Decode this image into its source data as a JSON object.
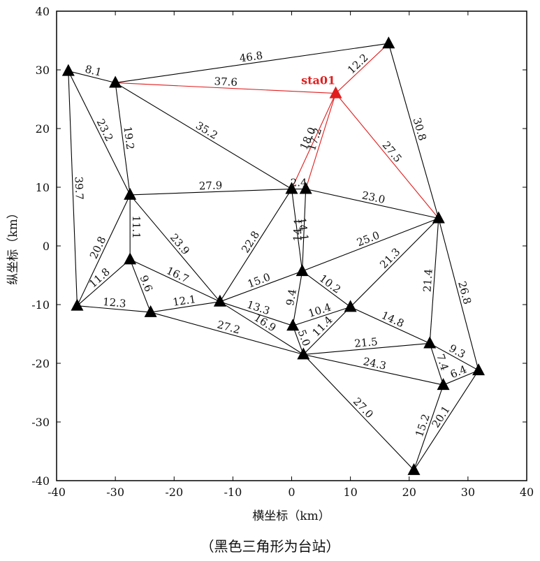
{
  "axes": {
    "x_label": "横坐标（km）",
    "y_label": "纵坐标（km）",
    "x_range": [
      -40,
      40
    ],
    "y_range": [
      -40,
      40
    ],
    "x_ticks": [
      "-40",
      "-30",
      "-20",
      "-10",
      "0",
      "10",
      "20",
      "30",
      "40"
    ],
    "y_ticks": [
      "40",
      "30",
      "20",
      "10",
      "0",
      "-10",
      "-20",
      "-30",
      "-40"
    ]
  },
  "caption": "（黑色三角形为台站）",
  "highlight_station": {
    "label": "sta01",
    "color": "#e01e1e"
  },
  "stations": [
    {
      "id": "A",
      "x": -38.0,
      "y": 29.8
    },
    {
      "id": "B",
      "x": -30.0,
      "y": 27.8
    },
    {
      "id": "C",
      "x": 16.5,
      "y": 34.5
    },
    {
      "id": "S",
      "x": 7.5,
      "y": 26.0,
      "highlight": true
    },
    {
      "id": "D",
      "x": -27.5,
      "y": 8.7
    },
    {
      "id": "E",
      "x": 0.0,
      "y": 9.7
    },
    {
      "id": "F",
      "x": 2.4,
      "y": 9.7
    },
    {
      "id": "G",
      "x": 25.0,
      "y": 4.7
    },
    {
      "id": "H",
      "x": -27.5,
      "y": -2.3
    },
    {
      "id": "I",
      "x": -36.5,
      "y": -10.2
    },
    {
      "id": "J",
      "x": -24.0,
      "y": -11.3
    },
    {
      "id": "K",
      "x": -12.2,
      "y": -9.5
    },
    {
      "id": "L",
      "x": 1.8,
      "y": -4.3
    },
    {
      "id": "M",
      "x": 10.0,
      "y": -10.4
    },
    {
      "id": "N",
      "x": 0.2,
      "y": -13.6
    },
    {
      "id": "O",
      "x": 2.0,
      "y": -18.5
    },
    {
      "id": "P",
      "x": 23.5,
      "y": -16.6
    },
    {
      "id": "Q",
      "x": 31.8,
      "y": -21.2
    },
    {
      "id": "R",
      "x": 25.8,
      "y": -23.7
    },
    {
      "id": "T",
      "x": 20.8,
      "y": -38.2
    }
  ],
  "edges": [
    {
      "a": "A",
      "b": "B",
      "label": "8.1"
    },
    {
      "a": "B",
      "b": "C",
      "label": "46.8"
    },
    {
      "a": "B",
      "b": "S",
      "label": "37.6",
      "red": true
    },
    {
      "a": "S",
      "b": "C",
      "label": "12.2",
      "red": true
    },
    {
      "a": "C",
      "b": "G",
      "label": "30.8"
    },
    {
      "a": "S",
      "b": "G",
      "label": "27.5",
      "red": true
    },
    {
      "a": "A",
      "b": "D",
      "label": "23.2"
    },
    {
      "a": "B",
      "b": "D",
      "label": "19.2"
    },
    {
      "a": "A",
      "b": "I",
      "label": "39.7"
    },
    {
      "a": "B",
      "b": "E",
      "label": "35.2"
    },
    {
      "a": "S",
      "b": "E",
      "label": "18.0",
      "red": true
    },
    {
      "a": "S",
      "b": "F",
      "label": "17.2",
      "red": true
    },
    {
      "a": "E",
      "b": "F",
      "label": "2.4"
    },
    {
      "a": "D",
      "b": "E",
      "label": "27.9"
    },
    {
      "a": "F",
      "b": "G",
      "label": "23.0"
    },
    {
      "a": "D",
      "b": "H",
      "label": "11.1"
    },
    {
      "a": "D",
      "b": "I",
      "label": "20.8"
    },
    {
      "a": "D",
      "b": "K",
      "label": "23.9"
    },
    {
      "a": "E",
      "b": "K",
      "label": "22.8"
    },
    {
      "a": "E",
      "b": "L",
      "label": "14.1"
    },
    {
      "a": "F",
      "b": "L",
      "label": "14.1"
    },
    {
      "a": "L",
      "b": "G",
      "label": "25.0"
    },
    {
      "a": "M",
      "b": "G",
      "label": "21.3"
    },
    {
      "a": "H",
      "b": "I",
      "label": "11.8"
    },
    {
      "a": "H",
      "b": "J",
      "label": "9.6"
    },
    {
      "a": "H",
      "b": "K",
      "label": "16.7"
    },
    {
      "a": "I",
      "b": "J",
      "label": "12.3"
    },
    {
      "a": "J",
      "b": "K",
      "label": "12.1"
    },
    {
      "a": "K",
      "b": "L",
      "label": "15.0"
    },
    {
      "a": "L",
      "b": "M",
      "label": "10.2"
    },
    {
      "a": "L",
      "b": "N",
      "label": "9.4"
    },
    {
      "a": "K",
      "b": "N",
      "label": "13.3"
    },
    {
      "a": "N",
      "b": "M",
      "label": "10.4"
    },
    {
      "a": "N",
      "b": "O",
      "label": "5.0"
    },
    {
      "a": "K",
      "b": "O",
      "label": "16.9"
    },
    {
      "a": "J",
      "b": "O",
      "label": "27.2"
    },
    {
      "a": "M",
      "b": "O",
      "label": "11.4"
    },
    {
      "a": "M",
      "b": "P",
      "label": "14.8"
    },
    {
      "a": "G",
      "b": "P",
      "label": "21.4"
    },
    {
      "a": "G",
      "b": "Q",
      "label": "26.8"
    },
    {
      "a": "O",
      "b": "P",
      "label": "21.5"
    },
    {
      "a": "P",
      "b": "R",
      "label": "7.4"
    },
    {
      "a": "P",
      "b": "Q",
      "label": "9.3"
    },
    {
      "a": "O",
      "b": "R",
      "label": "24.3"
    },
    {
      "a": "Q",
      "b": "R",
      "label": "6.4"
    },
    {
      "a": "O",
      "b": "T",
      "label": "27.0"
    },
    {
      "a": "R",
      "b": "T",
      "label": "15.2"
    },
    {
      "a": "Q",
      "b": "T",
      "label": "20.1"
    }
  ]
}
